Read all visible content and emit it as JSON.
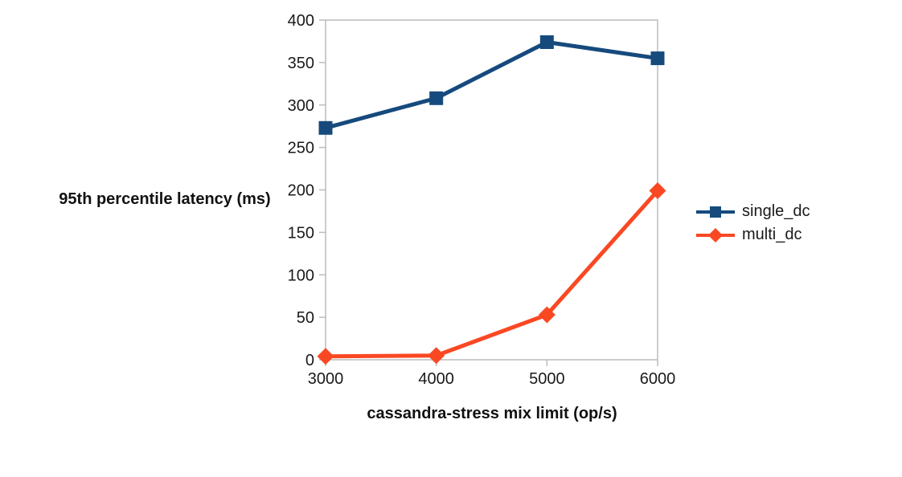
{
  "chart_data": {
    "type": "line",
    "x": [
      3000,
      4000,
      5000,
      6000
    ],
    "x_ticks": [
      3000,
      4000,
      5000,
      6000
    ],
    "y_ticks": [
      0,
      50,
      100,
      150,
      200,
      250,
      300,
      350,
      400
    ],
    "xlim": [
      3000,
      6000
    ],
    "ylim": [
      0,
      400
    ],
    "series": [
      {
        "name": "single_dc",
        "color": "#164a7d",
        "marker": "square",
        "values": [
          273,
          308,
          374,
          355
        ]
      },
      {
        "name": "multi_dc",
        "color": "#fa4823",
        "marker": "diamond",
        "values": [
          4,
          5,
          53,
          199
        ]
      }
    ],
    "title": "",
    "xlabel": "cassandra-stress mix limit (op/s)",
    "ylabel": "95th percentile latency (ms)",
    "grid": false,
    "legend_position": "right",
    "axis_color": "#bcbcbc",
    "text_color": "#1a1a1a",
    "background_color": "#ffffff"
  }
}
